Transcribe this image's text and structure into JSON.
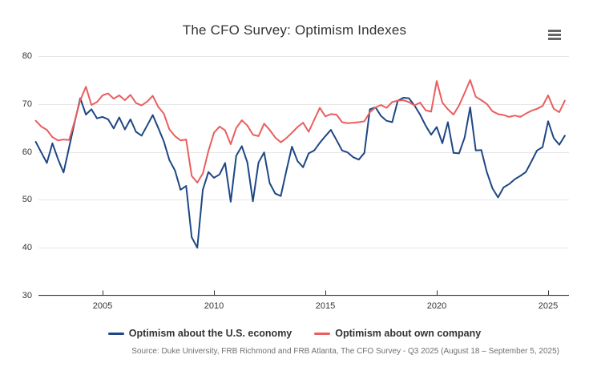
{
  "header": {
    "title": "The CFO Survey: Optimism Indexes",
    "menu_icon": "hamburger-icon"
  },
  "chart_data": {
    "type": "line",
    "title": "The CFO Survey: Optimism Indexes",
    "xlabel": "",
    "ylabel": "",
    "ylim": [
      30,
      80
    ],
    "ytick_labels": [
      "30",
      "40",
      "50",
      "60",
      "70",
      "80"
    ],
    "xtick_years": [
      2005,
      2010,
      2015,
      2020,
      2025
    ],
    "frequency": "quarterly",
    "grid": "horizontal",
    "legend_position": "bottom-center",
    "categories": [
      "2001 Q4",
      "2002 Q1",
      "2002 Q2",
      "2002 Q3",
      "2002 Q4",
      "2003 Q1",
      "2003 Q2",
      "2003 Q3",
      "2003 Q4",
      "2004 Q1",
      "2004 Q2",
      "2004 Q3",
      "2004 Q4",
      "2005 Q1",
      "2005 Q2",
      "2005 Q3",
      "2005 Q4",
      "2006 Q1",
      "2006 Q2",
      "2006 Q3",
      "2006 Q4",
      "2007 Q1",
      "2007 Q2",
      "2007 Q3",
      "2007 Q4",
      "2008 Q1",
      "2008 Q2",
      "2008 Q3",
      "2008 Q4",
      "2009 Q1",
      "2009 Q2",
      "2009 Q3",
      "2009 Q4",
      "2010 Q1",
      "2010 Q2",
      "2010 Q3",
      "2010 Q4",
      "2011 Q1",
      "2011 Q2",
      "2011 Q3",
      "2011 Q4",
      "2012 Q1",
      "2012 Q2",
      "2012 Q3",
      "2012 Q4",
      "2013 Q1",
      "2013 Q2",
      "2013 Q3",
      "2013 Q4",
      "2014 Q1",
      "2014 Q2",
      "2014 Q3",
      "2014 Q4",
      "2015 Q1",
      "2015 Q2",
      "2015 Q3",
      "2015 Q4",
      "2016 Q1",
      "2016 Q2",
      "2016 Q3",
      "2016 Q4",
      "2017 Q1",
      "2017 Q2",
      "2017 Q3",
      "2017 Q4",
      "2018 Q1",
      "2018 Q2",
      "2018 Q3",
      "2018 Q4",
      "2019 Q1",
      "2019 Q2",
      "2019 Q3",
      "2019 Q4",
      "2020 Q1",
      "2020 Q2",
      "2020 Q3",
      "2020 Q4",
      "2021 Q1",
      "2021 Q2",
      "2021 Q3",
      "2021 Q4",
      "2022 Q1",
      "2022 Q2",
      "2022 Q3",
      "2022 Q4",
      "2023 Q1",
      "2023 Q2",
      "2023 Q3",
      "2023 Q4",
      "2024 Q1",
      "2024 Q2",
      "2024 Q3",
      "2024 Q4",
      "2025 Q1",
      "2025 Q2",
      "2025 Q3"
    ],
    "series": [
      {
        "name": "Optimism about the U.S. economy",
        "color": "#1e4785",
        "values": [
          62.1,
          59.9,
          57.7,
          61.8,
          58.5,
          55.7,
          61.0,
          66.3,
          71.2,
          67.8,
          68.9,
          67.0,
          67.3,
          66.8,
          64.9,
          67.2,
          64.7,
          66.8,
          64.2,
          63.4,
          65.5,
          67.7,
          65.0,
          62.2,
          58.3,
          56.1,
          52.1,
          52.9,
          42.2,
          40.0,
          52.1,
          55.8,
          54.6,
          55.3,
          57.7,
          49.6,
          59.2,
          61.2,
          57.8,
          49.7,
          57.8,
          59.9,
          53.5,
          51.3,
          50.8,
          56.1,
          61.1,
          58.1,
          56.8,
          59.7,
          60.3,
          61.9,
          63.3,
          64.6,
          62.5,
          60.3,
          59.9,
          58.9,
          58.4,
          59.8,
          68.9,
          69.3,
          67.5,
          66.5,
          66.2,
          70.7,
          71.3,
          71.2,
          69.7,
          67.8,
          65.5,
          63.6,
          65.2,
          61.8,
          66.2,
          59.8,
          59.7,
          63.0,
          69.3,
          60.3,
          60.4,
          55.8,
          52.4,
          50.5,
          52.6,
          53.3,
          54.3,
          55.0,
          55.8,
          58.0,
          60.3,
          61.0,
          66.4,
          62.9,
          61.5,
          63.4
        ]
      },
      {
        "name": "Optimism about own company",
        "color": "#ea5e5e",
        "values": [
          66.5,
          65.3,
          64.6,
          63.1,
          62.4,
          62.6,
          62.5,
          66.5,
          70.8,
          73.6,
          69.8,
          70.4,
          71.8,
          72.2,
          71.1,
          71.8,
          70.8,
          71.9,
          70.2,
          69.7,
          70.5,
          71.7,
          69.4,
          68.0,
          64.7,
          63.3,
          62.4,
          62.6,
          55.0,
          53.6,
          55.5,
          60.2,
          64.0,
          65.3,
          64.5,
          61.6,
          65.0,
          66.6,
          65.5,
          63.6,
          63.3,
          65.9,
          64.6,
          63.0,
          62.0,
          62.9,
          64.0,
          65.2,
          66.1,
          64.2,
          66.7,
          69.2,
          67.4,
          67.9,
          67.8,
          66.2,
          66.0,
          66.1,
          66.2,
          66.4,
          68.3,
          69.3,
          69.8,
          69.2,
          70.4,
          70.7,
          70.8,
          70.4,
          69.7,
          70.3,
          68.7,
          68.4,
          74.8,
          70.3,
          68.9,
          67.8,
          69.7,
          72.3,
          75.0,
          71.5,
          70.8,
          70.0,
          68.5,
          67.9,
          67.7,
          67.3,
          67.6,
          67.3,
          68.0,
          68.6,
          69.0,
          69.6,
          71.8,
          69.0,
          68.3,
          70.7
        ]
      }
    ],
    "axis_color": "#333333",
    "grid_color": "#e6e6e6",
    "source": "Source: Duke University, FRB Richmond and FRB Atlanta, The CFO Survey - Q3 2025 (August 18 – September 5, 2025)"
  }
}
